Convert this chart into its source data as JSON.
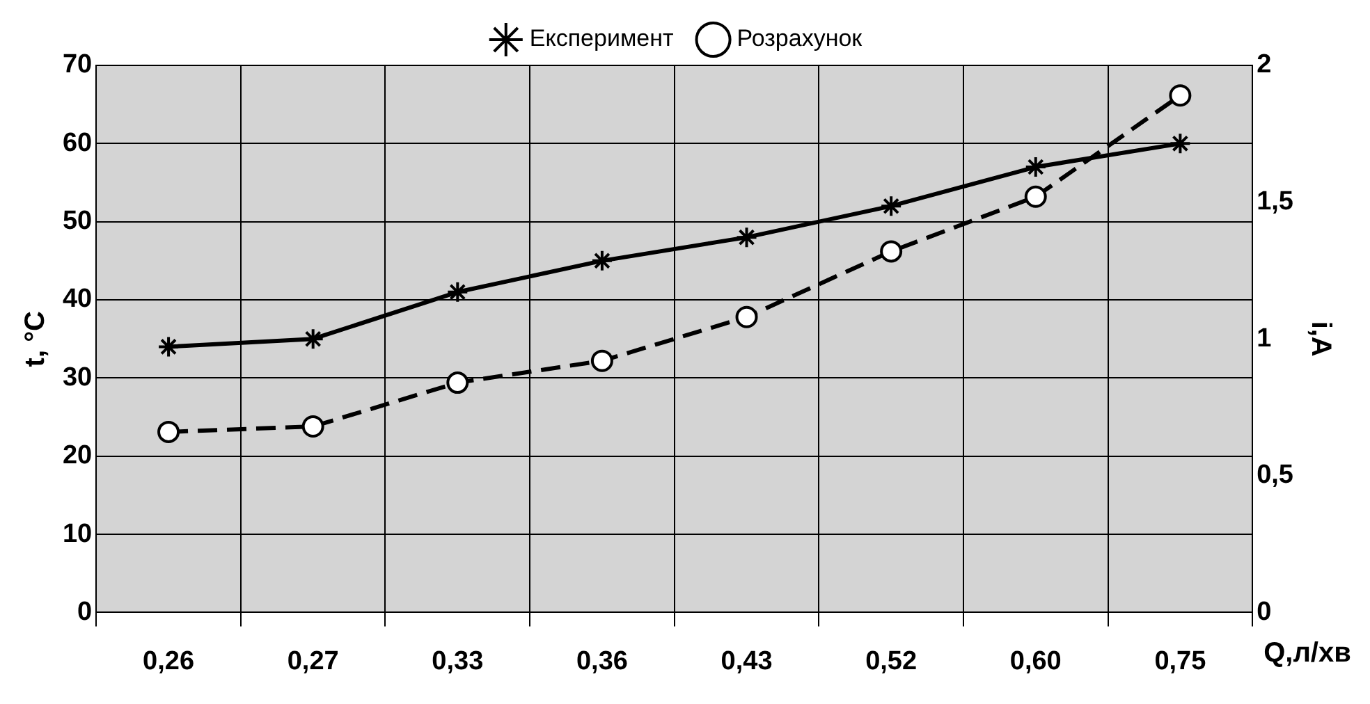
{
  "chart_data": {
    "type": "line",
    "xlabel": "Q,л/хв",
    "ylabel": "t, °C",
    "y2label": "i,A",
    "categories": [
      "0,26",
      "0,27",
      "0,33",
      "0,36",
      "0,43",
      "0,52",
      "0,60",
      "0,75"
    ],
    "series": [
      {
        "name": "Експеримент",
        "color": "#000000",
        "marker": "cross",
        "line_style": "solid",
        "values": [
          34,
          35,
          41,
          45,
          48,
          52,
          57,
          60
        ]
      },
      {
        "name": "Розрахунок",
        "color": "#000000",
        "marker": "circle",
        "line_style": "dashed",
        "axis": "y2",
        "values": [
          0.66,
          0.68,
          0.84,
          0.92,
          1.08,
          1.32,
          1.52,
          1.89
        ]
      }
    ],
    "ylim": [
      0,
      70
    ],
    "yticks": [
      0,
      10,
      20,
      30,
      40,
      50,
      60,
      70
    ],
    "y2lim": [
      0,
      2
    ],
    "y2ticks": [
      {
        "value": 0,
        "label": "0"
      },
      {
        "value": 0.5,
        "label": "0,5"
      },
      {
        "value": 1,
        "label": "1"
      },
      {
        "value": 1.5,
        "label": "1,5"
      },
      {
        "value": 2,
        "label": "2"
      }
    ],
    "grid": true,
    "legend": "top"
  }
}
